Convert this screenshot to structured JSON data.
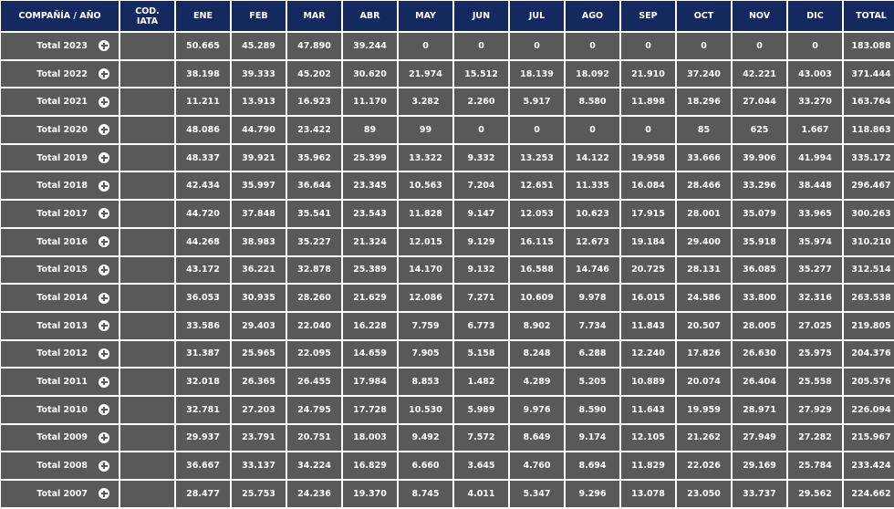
{
  "colors": {
    "header_bg": "#14295e",
    "cell_bg": "#595959",
    "text": "#ffffff"
  },
  "table": {
    "headers": [
      "COMPAÑÍA / AÑO",
      "COD. IATA",
      "ENE",
      "FEB",
      "MAR",
      "ABR",
      "MAY",
      "JUN",
      "JUL",
      "AGO",
      "SEP",
      "OCT",
      "NOV",
      "DIC",
      "TOTAL"
    ],
    "expand_icon": "plus-circle-icon",
    "rows": [
      {
        "label": "Total 2023",
        "iata": "",
        "values": [
          "50.665",
          "45.289",
          "47.890",
          "39.244",
          "0",
          "0",
          "0",
          "0",
          "0",
          "0",
          "0",
          "0",
          "183.088"
        ]
      },
      {
        "label": "Total 2022",
        "iata": "",
        "values": [
          "38.198",
          "39.333",
          "45.202",
          "30.620",
          "21.974",
          "15.512",
          "18.139",
          "18.092",
          "21.910",
          "37.240",
          "42.221",
          "43.003",
          "371.444"
        ]
      },
      {
        "label": "Total 2021",
        "iata": "",
        "values": [
          "11.211",
          "13.913",
          "16.923",
          "11.170",
          "3.282",
          "2.260",
          "5.917",
          "8.580",
          "11.898",
          "18.296",
          "27.044",
          "33.270",
          "163.764"
        ]
      },
      {
        "label": "Total 2020",
        "iata": "",
        "values": [
          "48.086",
          "44.790",
          "23.422",
          "89",
          "99",
          "0",
          "0",
          "0",
          "0",
          "85",
          "625",
          "1.667",
          "118.863"
        ]
      },
      {
        "label": "Total 2019",
        "iata": "",
        "values": [
          "48.337",
          "39.921",
          "35.962",
          "25.399",
          "13.322",
          "9.332",
          "13.253",
          "14.122",
          "19.958",
          "33.666",
          "39.906",
          "41.994",
          "335.172"
        ]
      },
      {
        "label": "Total 2018",
        "iata": "",
        "values": [
          "42.434",
          "35.997",
          "36.644",
          "23.345",
          "10.563",
          "7.204",
          "12.651",
          "11.335",
          "16.084",
          "28.466",
          "33.296",
          "38.448",
          "296.467"
        ]
      },
      {
        "label": "Total 2017",
        "iata": "",
        "values": [
          "44.720",
          "37.848",
          "35.541",
          "23.543",
          "11.828",
          "9.147",
          "12.053",
          "10.623",
          "17.915",
          "28.001",
          "35.079",
          "33.965",
          "300.263"
        ]
      },
      {
        "label": "Total 2016",
        "iata": "",
        "values": [
          "44.268",
          "38.983",
          "35.227",
          "21.324",
          "12.015",
          "9.129",
          "16.115",
          "12.673",
          "19.184",
          "29.400",
          "35.918",
          "35.974",
          "310.210"
        ]
      },
      {
        "label": "Total 2015",
        "iata": "",
        "values": [
          "43.172",
          "36.221",
          "32.878",
          "25.389",
          "14.170",
          "9.132",
          "16.588",
          "14.746",
          "20.725",
          "28.131",
          "36.085",
          "35.277",
          "312.514"
        ]
      },
      {
        "label": "Total 2014",
        "iata": "",
        "values": [
          "36.053",
          "30.935",
          "28.260",
          "21.629",
          "12.086",
          "7.271",
          "10.609",
          "9.978",
          "16.015",
          "24.586",
          "33.800",
          "32.316",
          "263.538"
        ]
      },
      {
        "label": "Total 2013",
        "iata": "",
        "values": [
          "33.586",
          "29.403",
          "22.040",
          "16.228",
          "7.759",
          "6.773",
          "8.902",
          "7.734",
          "11.843",
          "20.507",
          "28.005",
          "27.025",
          "219.805"
        ]
      },
      {
        "label": "Total 2012",
        "iata": "",
        "values": [
          "31.387",
          "25.965",
          "22.095",
          "14.659",
          "7.905",
          "5.158",
          "8.248",
          "6.288",
          "12.240",
          "17.826",
          "26.630",
          "25.975",
          "204.376"
        ]
      },
      {
        "label": "Total 2011",
        "iata": "",
        "values": [
          "32.018",
          "26.365",
          "26.455",
          "17.984",
          "8.853",
          "1.482",
          "4.289",
          "5.205",
          "10.889",
          "20.074",
          "26.404",
          "25.558",
          "205.576"
        ]
      },
      {
        "label": "Total 2010",
        "iata": "",
        "values": [
          "32.781",
          "27.203",
          "24.795",
          "17.728",
          "10.530",
          "5.989",
          "9.976",
          "8.590",
          "11.643",
          "19.959",
          "28.971",
          "27.929",
          "226.094"
        ]
      },
      {
        "label": "Total 2009",
        "iata": "",
        "values": [
          "29.937",
          "23.791",
          "20.751",
          "18.003",
          "9.492",
          "7.572",
          "8.649",
          "9.174",
          "12.105",
          "21.262",
          "27.949",
          "27.282",
          "215.967"
        ]
      },
      {
        "label": "Total 2008",
        "iata": "",
        "values": [
          "36.667",
          "33.137",
          "34.224",
          "16.829",
          "6.660",
          "3.645",
          "4.760",
          "8.694",
          "11.829",
          "22.026",
          "29.169",
          "25.784",
          "233.424"
        ]
      },
      {
        "label": "Total 2007",
        "iata": "",
        "values": [
          "28.477",
          "25.753",
          "24.236",
          "19.370",
          "8.745",
          "4.011",
          "5.347",
          "9.296",
          "13.078",
          "23.050",
          "33.737",
          "29.562",
          "224.662"
        ]
      }
    ]
  }
}
